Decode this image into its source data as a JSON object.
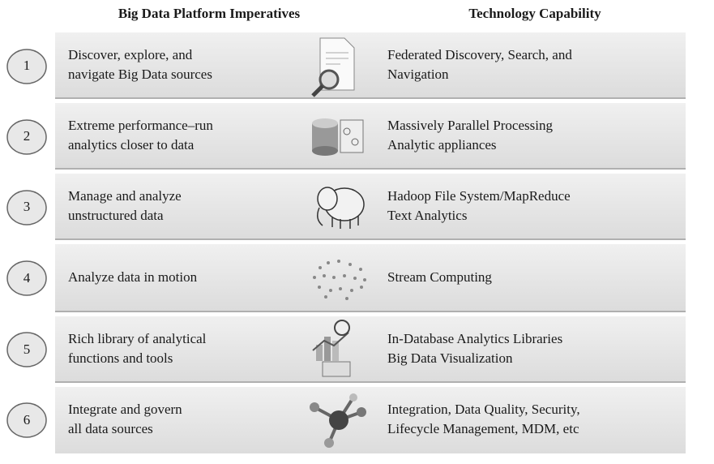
{
  "headers": {
    "imperatives": "Big Data Platform Imperatives",
    "capability": "Technology Capability"
  },
  "rows": [
    {
      "number": "1",
      "imperative": [
        "Discover, explore, and",
        "navigate Big Data sources"
      ],
      "capability": [
        "Federated Discovery, Search, and",
        "Navigation"
      ]
    },
    {
      "number": "2",
      "imperative": [
        "Extreme performance–run",
        "analytics closer to data"
      ],
      "capability": [
        "Massively Parallel Processing",
        "Analytic appliances"
      ]
    },
    {
      "number": "3",
      "imperative": [
        "Manage and analyze",
        "unstructured data"
      ],
      "capability": [
        "Hadoop File System/MapReduce",
        "Text Analytics"
      ]
    },
    {
      "number": "4",
      "imperative": [
        "Analyze data in motion"
      ],
      "capability": [
        "Stream Computing"
      ]
    },
    {
      "number": "5",
      "imperative": [
        "Rich library of analytical",
        "functions and tools"
      ],
      "capability": [
        "In-Database Analytics Libraries",
        "Big Data Visualization"
      ]
    },
    {
      "number": "6",
      "imperative": [
        "Integrate and govern",
        "all data sources"
      ],
      "capability": [
        "Integration, Data Quality, Security,",
        "Lifecycle Management, MDM, etc"
      ]
    }
  ]
}
